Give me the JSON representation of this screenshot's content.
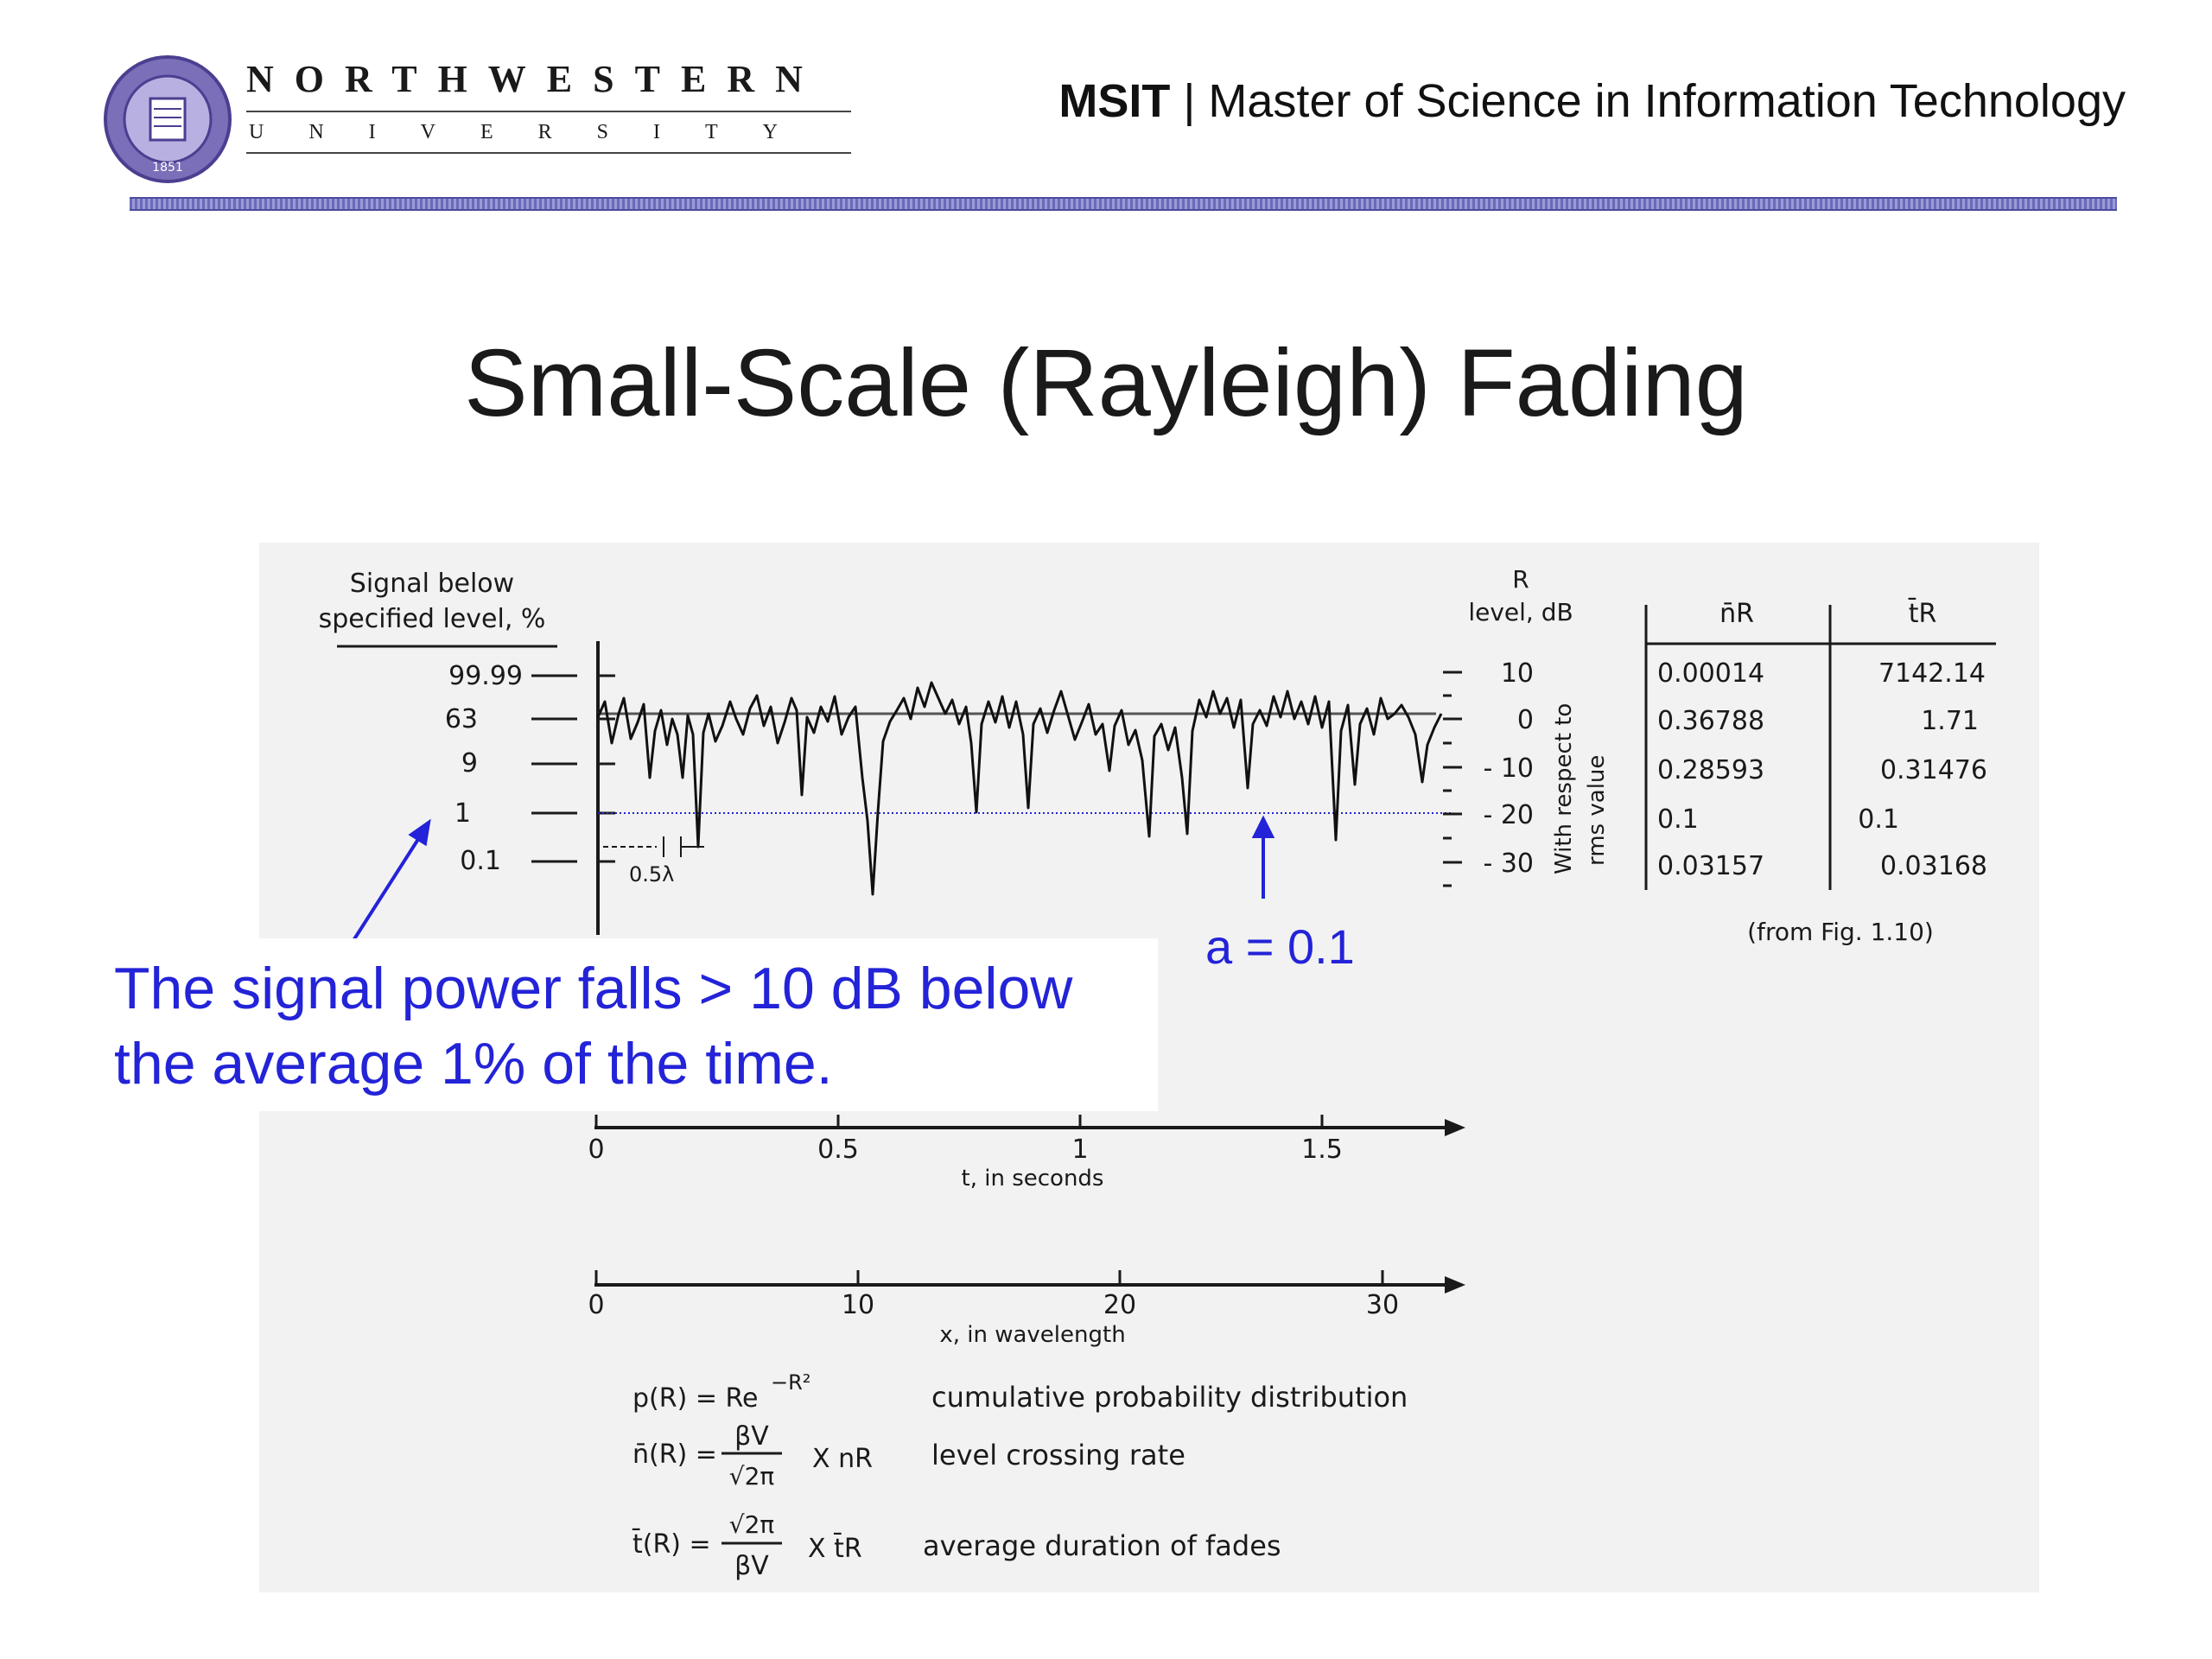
{
  "header": {
    "university_top": "NORTHWESTERN",
    "university_bottom": "UNIVERSITY",
    "seal_year": "1851",
    "program_abbr": "MSIT",
    "program_sep": "|",
    "program_name": "Master of Science in Information Technology"
  },
  "slide": {
    "title": "Small-Scale (Rayleigh) Fading"
  },
  "figure": {
    "left_axis_title_line1": "Signal below",
    "left_axis_title_line2": "specified level, %",
    "left_ticks": [
      "99.99",
      "63",
      "9",
      "1",
      "0.1"
    ],
    "right_axis_title_line1": "R",
    "right_axis_title_line2": "level, dB",
    "right_ticks": [
      "10",
      "0",
      "- 10",
      "- 20",
      "- 30"
    ],
    "right_vertical_line1": "With respect to",
    "right_vertical_line2": "rms value",
    "half_lambda": "0.5λ",
    "table": {
      "col1_header": "n̄R",
      "col2_header": "t̄R",
      "col1": [
        "0.00014",
        "0.36788",
        "0.28593",
        "0.1",
        "0.03157"
      ],
      "col2": [
        "7142.14",
        "1.71",
        "0.31476",
        "0.1",
        "0.03168"
      ]
    },
    "source_note": "(from Fig. 1.10)",
    "time_axis": {
      "ticks": [
        "0",
        "0.5",
        "1",
        "1.5"
      ],
      "label": "t, in seconds"
    },
    "wavelength_axis": {
      "ticks": [
        "0",
        "10",
        "20",
        "30"
      ],
      "label": "x, in wavelength"
    },
    "formulas": [
      {
        "expr": "p(R) = Re",
        "sup": "−R²",
        "desc": "cumulative probability distribution"
      },
      {
        "expr_left": "n̄(R) =",
        "num": "βV",
        "den": "√2π",
        "mult": "X  nR",
        "desc": "level crossing rate"
      },
      {
        "expr_left": "t̄(R) =",
        "num": "√2π",
        "den": "βV",
        "mult": "X  t̄R",
        "desc": "average duration of fades"
      }
    ]
  },
  "annotations": {
    "a_label": "a = 0.1",
    "callout_line1": "The signal power falls > 10 dB below",
    "callout_line2": "the average 1% of the time."
  },
  "colors": {
    "accent_blue": "#2323d8",
    "divider": "#6a6ab8",
    "seal": "#6a5fa8"
  }
}
